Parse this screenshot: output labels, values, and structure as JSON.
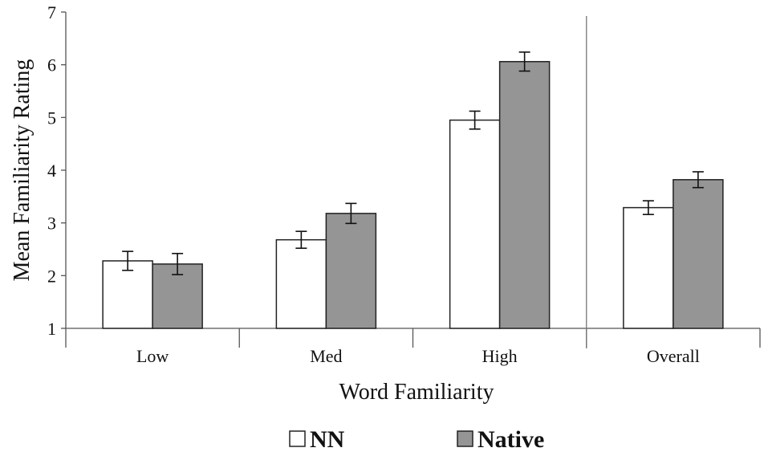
{
  "chart_data": {
    "type": "bar",
    "title": "",
    "xlabel": "Word Familiarity",
    "ylabel": "Mean Familiarity Rating",
    "ylim": [
      1,
      7
    ],
    "yticks": [
      1,
      2,
      3,
      4,
      5,
      6,
      7
    ],
    "categories": [
      "Low",
      "Med",
      "High",
      "Overall"
    ],
    "series": [
      {
        "name": "NN",
        "color": "#ffffff",
        "values": [
          2.28,
          2.68,
          4.95,
          3.29
        ],
        "error": [
          0.18,
          0.16,
          0.17,
          0.13
        ]
      },
      {
        "name": "Native",
        "color": "#959595",
        "values": [
          2.22,
          3.18,
          6.06,
          3.82
        ],
        "error": [
          0.2,
          0.19,
          0.18,
          0.15
        ]
      }
    ],
    "separator_before_category": "Overall",
    "grid": false,
    "legend_position": "bottom-center"
  }
}
